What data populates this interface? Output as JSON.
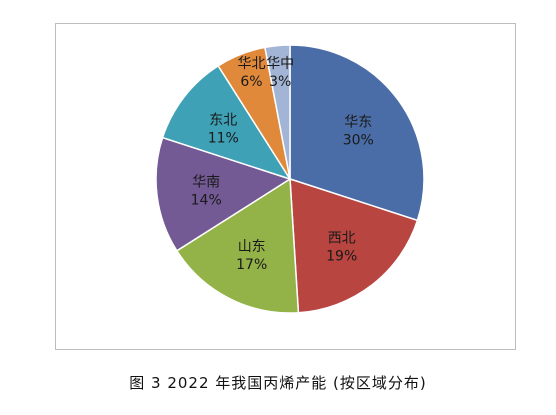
{
  "caption": "图 3  2022 年我国丙烯产能 (按区域分布)",
  "chart_data": {
    "type": "pie",
    "title": "",
    "slices": [
      {
        "name": "华东",
        "value": 30,
        "label": "30%",
        "color": "#4a6da7"
      },
      {
        "name": "西北",
        "value": 19,
        "label": "19%",
        "color": "#b94541"
      },
      {
        "name": "山东",
        "value": 17,
        "label": "17%",
        "color": "#93b247"
      },
      {
        "name": "华南",
        "value": 14,
        "label": "14%",
        "color": "#735a95"
      },
      {
        "name": "东北",
        "value": 11,
        "label": "11%",
        "color": "#3ea1b6"
      },
      {
        "name": "华北",
        "value": 6,
        "label": "6%",
        "color": "#e0893a"
      },
      {
        "name": "华中",
        "value": 3,
        "label": "3%",
        "color": "#a3b5d6"
      }
    ]
  }
}
